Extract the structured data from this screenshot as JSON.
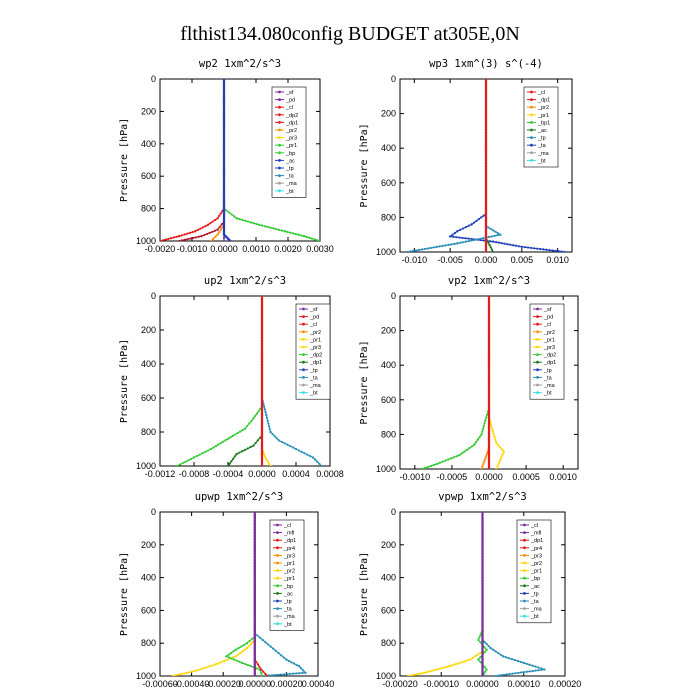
{
  "figure_title": "flthist134.080config  BUDGET at305E,0N",
  "colors": {
    "red": "#e41a1c",
    "darkred": "#b2182b",
    "purple": "#7b2d9b",
    "orange": "#ff8c00",
    "yellow": "#ffd700",
    "green": "#33cc33",
    "darkgreen": "#1a7a1a",
    "blue": "#1f3fbf",
    "teal": "#2a8fb8",
    "cyan": "#33e0e0",
    "gray": "#a0a0a0"
  },
  "chart_data": [
    {
      "type": "line",
      "title": "wp2   1xm^2/s^3",
      "ylabel": "Pressure [hPa]",
      "xlim": [
        -0.002,
        0.003
      ],
      "ylim": [
        1000,
        0
      ],
      "xticks": [
        "-0.0020",
        "-0.0010",
        "0.0000",
        "0.0010",
        "0.0020",
        "0.0030"
      ],
      "xtick_values": [
        -0.002,
        -0.001,
        0,
        0.001,
        0.002,
        0.003
      ],
      "yticks": [
        "0",
        "200",
        "400",
        "600",
        "800",
        "1000"
      ],
      "ytick_values": [
        0,
        200,
        400,
        600,
        800,
        1000
      ],
      "legend": [
        "_sf",
        "_pd",
        "_cl",
        "_dp2",
        "_dp1",
        "_pr2",
        "_pr3",
        "_pr1",
        "_bp",
        "_ac",
        "_tp",
        "_ta",
        "_ma",
        "_bt"
      ],
      "legend_colors": [
        "#7b2d9b",
        "#7b2d9b",
        "#e41a1c",
        "#e41a1c",
        "#e41a1c",
        "#ff8c00",
        "#ffd700",
        "#33cc33",
        "#33cc33",
        "#1f3fbf",
        "#1f3fbf",
        "#2a8fb8",
        "#a0a0a0",
        "#33e0e0"
      ],
      "series": [
        {
          "color": "#33cc33",
          "p": [
            0,
            800,
            860,
            900,
            940,
            970,
            1000
          ],
          "x": [
            0,
            0,
            0.0004,
            0.0011,
            0.0019,
            0.0025,
            0.003
          ]
        },
        {
          "color": "#e41a1c",
          "p": [
            0,
            800,
            860,
            900,
            940,
            970,
            1000
          ],
          "x": [
            0,
            0,
            -0.0002,
            -0.0005,
            -0.0009,
            -0.0014,
            -0.002
          ]
        },
        {
          "color": "#b2182b",
          "p": [
            0,
            880,
            930,
            970,
            1000
          ],
          "x": [
            0,
            0,
            -0.0002,
            -0.0007,
            -0.0014
          ]
        },
        {
          "color": "#ff8c00",
          "p": [
            0,
            900,
            960,
            1000
          ],
          "x": [
            0,
            0,
            -0.0002,
            -0.0004
          ]
        },
        {
          "color": "#7b2d9b",
          "p": [
            0,
            1000
          ],
          "x": [
            0,
            0
          ]
        },
        {
          "color": "#1f3fbf",
          "p": [
            0,
            960,
            1000
          ],
          "x": [
            0,
            0,
            0.0002
          ]
        }
      ]
    },
    {
      "type": "line",
      "title": "wp3   1xm^(3) s^(-4)",
      "ylabel": "Pressure [hPa]",
      "xlim": [
        -0.012,
        0.012
      ],
      "ylim": [
        1000,
        0
      ],
      "xticks": [
        "-0.010",
        "-0.005",
        "0.000",
        "0.005",
        "0.010"
      ],
      "xtick_values": [
        -0.01,
        -0.005,
        0,
        0.005,
        0.01
      ],
      "yticks": [
        "0",
        "200",
        "400",
        "600",
        "800",
        "1000"
      ],
      "ytick_values": [
        0,
        200,
        400,
        600,
        800,
        1000
      ],
      "legend": [
        "_cl",
        "_dp1",
        "_pr2",
        "_pr1",
        "_bp1",
        "_ac",
        "_tp",
        "_ta",
        "_ma",
        "_bt"
      ],
      "legend_colors": [
        "#e41a1c",
        "#e41a1c",
        "#ff8c00",
        "#ffd700",
        "#33cc33",
        "#1a7a1a",
        "#2a8fb8",
        "#1f3fbf",
        "#a0a0a0",
        "#33e0e0"
      ],
      "series": [
        {
          "color": "#1f3fbf",
          "p": [
            0,
            780,
            840,
            880,
            910,
            940,
            970,
            1000
          ],
          "x": [
            0,
            0,
            -0.002,
            -0.004,
            -0.005,
            0.001,
            0.005,
            0.011
          ]
        },
        {
          "color": "#2a8fb8",
          "p": [
            0,
            850,
            900,
            950,
            1000
          ],
          "x": [
            0,
            0,
            0.002,
            -0.004,
            -0.011
          ]
        },
        {
          "color": "#1a7a1a",
          "p": [
            0,
            920,
            960,
            1000
          ],
          "x": [
            0,
            0,
            0.0005,
            0.001
          ]
        },
        {
          "color": "#e41a1c",
          "p": [
            0,
            1000
          ],
          "x": [
            0,
            0
          ]
        }
      ]
    },
    {
      "type": "line",
      "title": "up2   1xm^2/s^3",
      "ylabel": "Pressure [hPa]",
      "xlim": [
        -0.0012,
        0.0008
      ],
      "ylim": [
        1000,
        0
      ],
      "xticks": [
        "-0.0012",
        "-0.0008",
        "-0.0004",
        "0.0000",
        "0.0004",
        "0.0008"
      ],
      "xtick_values": [
        -0.0012,
        -0.0008,
        -0.0004,
        0,
        0.0004,
        0.0008
      ],
      "yticks": [
        "0",
        "200",
        "400",
        "600",
        "800",
        "1000"
      ],
      "ytick_values": [
        0,
        200,
        400,
        600,
        800,
        1000
      ],
      "legend": [
        "_sf",
        "_pd",
        "_cl",
        "_pr2",
        "_pr1",
        "_pr3",
        "_dp2",
        "_dp1",
        "_tp",
        "_ta",
        "_ma",
        "_bt"
      ],
      "legend_colors": [
        "#7b2d9b",
        "#e41a1c",
        "#e41a1c",
        "#ff8c00",
        "#ffd700",
        "#ffd700",
        "#33cc33",
        "#1a7a1a",
        "#1f3fbf",
        "#2a8fb8",
        "#a0a0a0",
        "#33e0e0"
      ],
      "series": [
        {
          "color": "#33cc33",
          "p": [
            0,
            650,
            720,
            780,
            840,
            900,
            950,
            1000
          ],
          "x": [
            0,
            0,
            -0.0001,
            -0.0002,
            -0.0004,
            -0.0006,
            -0.0008,
            -0.001
          ]
        },
        {
          "color": "#1a7a1a",
          "p": [
            0,
            820,
            880,
            930,
            1000
          ],
          "x": [
            0,
            0,
            -0.0001,
            -0.0003,
            -0.0004
          ]
        },
        {
          "color": "#2a8fb8",
          "p": [
            0,
            600,
            700,
            800,
            850,
            900,
            950,
            1000
          ],
          "x": [
            0,
            0,
            5e-05,
            0.0001,
            0.0002,
            0.0004,
            0.0006,
            0.0007
          ]
        },
        {
          "color": "#ffd700",
          "p": [
            0,
            900,
            960,
            1000
          ],
          "x": [
            0,
            0,
            5e-05,
            0.0001
          ]
        },
        {
          "color": "#e41a1c",
          "p": [
            0,
            1000
          ],
          "x": [
            0,
            0
          ]
        }
      ]
    },
    {
      "type": "line",
      "title": "vp2   1xm^2/s^3",
      "ylabel": "Pressure [hPa]",
      "xlim": [
        -0.0012,
        0.0012
      ],
      "ylim": [
        1000,
        0
      ],
      "xticks": [
        "-0.0010",
        "-0.0005",
        "0.0000",
        "0.0005",
        "0.0010"
      ],
      "xtick_values": [
        -0.001,
        -0.0005,
        0,
        0.0005,
        0.001
      ],
      "yticks": [
        "0",
        "200",
        "400",
        "600",
        "800",
        "1000"
      ],
      "ytick_values": [
        0,
        200,
        400,
        600,
        800,
        1000
      ],
      "legend": [
        "_sf",
        "_pd",
        "_cl",
        "_pr2",
        "_pr1",
        "_pr3",
        "_dp2",
        "_dp1",
        "_tp",
        "_ta",
        "_ma",
        "_bt"
      ],
      "legend_colors": [
        "#7b2d9b",
        "#e41a1c",
        "#e41a1c",
        "#ff8c00",
        "#ffd700",
        "#ffd700",
        "#33cc33",
        "#1a7a1a",
        "#1f3fbf",
        "#2a8fb8",
        "#a0a0a0",
        "#33e0e0"
      ],
      "series": [
        {
          "color": "#33cc33",
          "p": [
            0,
            650,
            720,
            800,
            860,
            920,
            970,
            1000
          ],
          "x": [
            0,
            0,
            -5e-05,
            -0.0001,
            -0.0002,
            -0.0004,
            -0.0007,
            -0.0009
          ]
        },
        {
          "color": "#ffd700",
          "p": [
            0,
            700,
            780,
            850,
            900,
            950,
            1000
          ],
          "x": [
            0,
            0,
            5e-05,
            0.0001,
            0.0002,
            0.00015,
            0.0001
          ]
        },
        {
          "color": "#ff8c00",
          "p": [
            0,
            880,
            940,
            1000
          ],
          "x": [
            0,
            0,
            -5e-05,
            -0.0001
          ]
        },
        {
          "color": "#e41a1c",
          "p": [
            0,
            1000
          ],
          "x": [
            0,
            0
          ]
        }
      ]
    },
    {
      "type": "line",
      "title": "upwp   1xm^2/s^3",
      "ylabel": "Pressure [hPa]",
      "xlim": [
        -0.0006,
        0.0004
      ],
      "ylim": [
        1000,
        0
      ],
      "xticks": [
        "-0.00060",
        "-0.00040",
        "-0.00020",
        "0.00000",
        "0.00020",
        "0.00040"
      ],
      "xtick_values": [
        -0.0006,
        -0.0004,
        -0.0002,
        0,
        0.0002,
        0.0004
      ],
      "yticks": [
        "0",
        "200",
        "400",
        "600",
        "800",
        "1000"
      ],
      "ytick_values": [
        0,
        200,
        400,
        600,
        800,
        1000
      ],
      "legend": [
        "_cl",
        "_mfl",
        "_dp1",
        "_pr4",
        "_pr3",
        "_pr1",
        "_pr2",
        "_pr1",
        "_bp",
        "_ac",
        "_tp",
        "_ta",
        "_ma",
        "_bt"
      ],
      "legend_colors": [
        "#7b2d9b",
        "#7b2d9b",
        "#e41a1c",
        "#e41a1c",
        "#ff8c00",
        "#ff8c00",
        "#ffd700",
        "#ffd700",
        "#33cc33",
        "#1a7a1a",
        "#1f3fbf",
        "#2a8fb8",
        "#a0a0a0",
        "#33e0e0"
      ],
      "series": [
        {
          "color": "#2a8fb8",
          "p": [
            0,
            740,
            780,
            820,
            860,
            900,
            940,
            980,
            1000
          ],
          "x": [
            0,
            0,
            5e-05,
            0.0001,
            0.00015,
            0.0002,
            0.00028,
            0.00032,
            5e-05
          ]
        },
        {
          "color": "#ffd700",
          "p": [
            0,
            780,
            830,
            880,
            930,
            970,
            1000
          ],
          "x": [
            0,
            0,
            -5e-05,
            -0.00012,
            -0.00025,
            -0.00038,
            -0.00052
          ]
        },
        {
          "color": "#33cc33",
          "p": [
            0,
            760,
            800,
            840,
            880,
            920,
            960,
            1000
          ],
          "x": [
            0,
            0,
            -5e-05,
            -0.00012,
            -0.00018,
            -8e-05,
            3e-05,
            5e-05
          ]
        },
        {
          "color": "#e41a1c",
          "p": [
            0,
            900,
            960,
            1000
          ],
          "x": [
            0,
            0,
            4e-05,
            8e-05
          ]
        },
        {
          "color": "#7b2d9b",
          "p": [
            0,
            1000
          ],
          "x": [
            0,
            0
          ]
        }
      ]
    },
    {
      "type": "line",
      "title": "vpwp   1xm^2/s^3",
      "ylabel": "Pressure [hPa]",
      "xlim": [
        -0.0002,
        0.0002
      ],
      "ylim": [
        1000,
        0
      ],
      "xticks": [
        "-0.00020",
        "-0.00010",
        "0.00000",
        "0.00010",
        "0.00020"
      ],
      "xtick_values": [
        -0.0002,
        -0.0001,
        0,
        0.0001,
        0.0002
      ],
      "yticks": [
        "0",
        "200",
        "400",
        "600",
        "800",
        "1000"
      ],
      "ytick_values": [
        0,
        200,
        400,
        600,
        800,
        1000
      ],
      "legend": [
        "_cl",
        "_mfl",
        "_dp1",
        "_pr4",
        "_pr3",
        "_pr2",
        "_pr1",
        "_bp",
        "_ac",
        "_tp",
        "_ta",
        "_ma",
        "_bt"
      ],
      "legend_colors": [
        "#7b2d9b",
        "#7b2d9b",
        "#e41a1c",
        "#e41a1c",
        "#ff8c00",
        "#ffd700",
        "#ffd700",
        "#33cc33",
        "#1a7a1a",
        "#1f3fbf",
        "#2a8fb8",
        "#a0a0a0",
        "#33e0e0"
      ],
      "series": [
        {
          "color": "#2a8fb8",
          "p": [
            0,
            780,
            830,
            880,
            920,
            960,
            1000
          ],
          "x": [
            0,
            0,
            2e-05,
            5e-05,
            0.0001,
            0.00015,
            3e-05
          ]
        },
        {
          "color": "#ffd700",
          "p": [
            0,
            850,
            900,
            940,
            980,
            1000
          ],
          "x": [
            0,
            0,
            -3e-05,
            -8e-05,
            -0.00014,
            -0.00018
          ]
        },
        {
          "color": "#33cc33",
          "p": [
            0,
            720,
            780,
            840,
            900,
            960,
            1000
          ],
          "x": [
            0,
            0,
            -1e-05,
            1e-05,
            -1e-05,
            1e-05,
            0
          ]
        },
        {
          "color": "#7b2d9b",
          "p": [
            0,
            1000
          ],
          "x": [
            0,
            0
          ]
        }
      ]
    }
  ]
}
